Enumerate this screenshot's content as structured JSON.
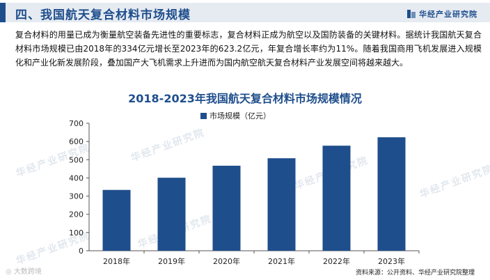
{
  "header": {
    "title": "四、我国航天复合材料市场规模",
    "brand": "华经产业研究院"
  },
  "paragraph": "复合材料的用量已成为衡量航空装备先进性的重要标志，复合材料正成为航空以及国防装备的关键材料。据统计我国航天复合材料市场规模已由2018年的334亿元增长至2023年的623.2亿元，年复合增长率约为11%。随着我国商用飞机发展进入规模化和产业化新发展阶段，叠加国产大飞机需求上升进而为国内航空航天复合材料产业发展空间将越来越大。",
  "watermark": "华经产业研究院",
  "footer": {
    "source": "资料来源：公开资料、华经产业研究院整理",
    "corner_mark": "大数跨境"
  },
  "colors": {
    "bar": "#1f4e8c",
    "title": "#1f4e8c"
  },
  "chart_data": {
    "type": "bar",
    "title": "2018-2023年我国航天复合材料市场规模情况",
    "categories": [
      "2018年",
      "2019年",
      "2020年",
      "2021年",
      "2022年",
      "2023年"
    ],
    "series": [
      {
        "name": "市场规模（亿元）",
        "values": [
          334,
          401,
          467,
          508,
          577,
          623.2
        ]
      }
    ],
    "ylim": [
      0,
      700
    ],
    "yticks": [
      0,
      100,
      200,
      300,
      400,
      500,
      600,
      700
    ],
    "xlabel": "",
    "ylabel": "",
    "grid": false,
    "legend_position": "top-center"
  }
}
